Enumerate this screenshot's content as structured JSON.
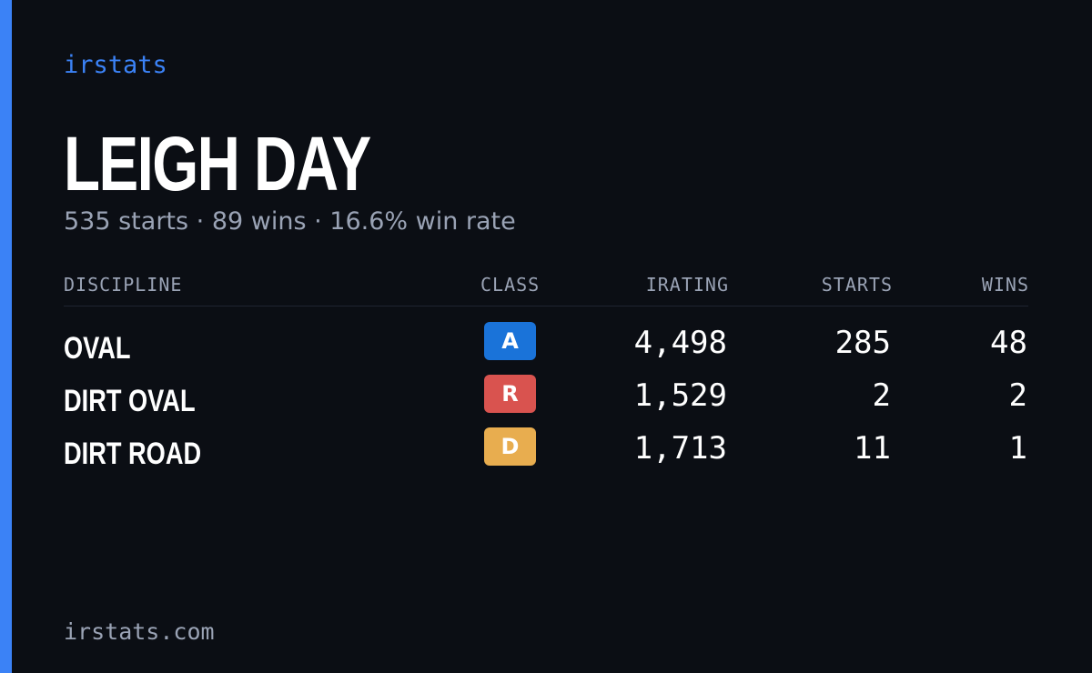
{
  "brand": "irstats",
  "profile": {
    "name": "LEIGH DAY",
    "summary": "535 starts · 89 wins · 16.6% win rate"
  },
  "table": {
    "headers": [
      "DISCIPLINE",
      "CLASS",
      "IRATING",
      "STARTS",
      "WINS"
    ],
    "rows": [
      [
        "OVAL",
        "A",
        "4,498",
        285,
        48
      ],
      [
        "DIRT OVAL",
        "R",
        "1,529",
        2,
        2
      ],
      [
        "DIRT ROAD",
        "D",
        "1,713",
        11,
        1
      ]
    ]
  },
  "footer": "irstats.com"
}
